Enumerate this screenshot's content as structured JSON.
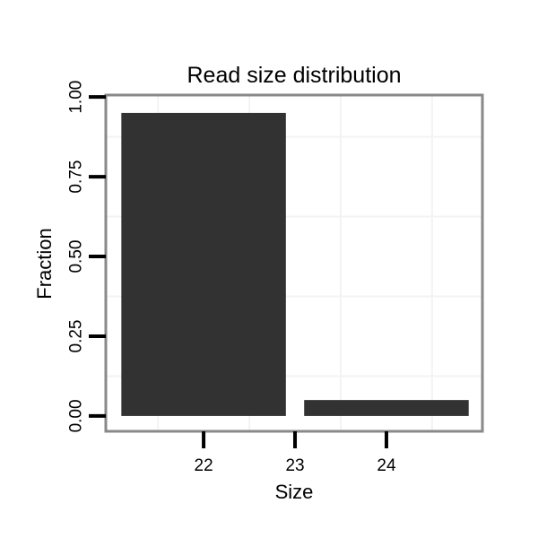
{
  "chart_data": {
    "type": "bar",
    "title": "Read size distribution",
    "xlabel": "Size",
    "ylabel": "Fraction",
    "categories": [
      22,
      24
    ],
    "values": [
      0.95,
      0.05
    ],
    "bar_width": 1.8,
    "xlim": [
      20.93,
      25.05
    ],
    "ylim": [
      -0.048,
      1.006
    ],
    "x_ticks": [
      {
        "value": 22,
        "label": "22"
      },
      {
        "value": 23,
        "label": "23"
      },
      {
        "value": 24,
        "label": "24"
      }
    ],
    "y_ticks": [
      {
        "value": 0.0,
        "label": "0.00"
      },
      {
        "value": 0.25,
        "label": "0.25"
      },
      {
        "value": 0.5,
        "label": "0.50"
      },
      {
        "value": 0.75,
        "label": "0.75"
      },
      {
        "value": 1.0,
        "label": "1.00"
      }
    ],
    "x_minor_gridlines": [
      21.5,
      22.5,
      23.5,
      24.5
    ],
    "y_minor_gridlines": [
      0.125,
      0.375,
      0.625,
      0.875
    ],
    "grid": "minor gridlines only",
    "legend": "none",
    "y_tick_label_rotation": -90,
    "colors": {
      "bar_fill": "#323232",
      "panel_border": "#898989",
      "panel_background": "#ffffff",
      "gridline": "#f3f3f3",
      "axis_tick": "#000000",
      "text": "#000000",
      "background": "#ffffff"
    }
  }
}
